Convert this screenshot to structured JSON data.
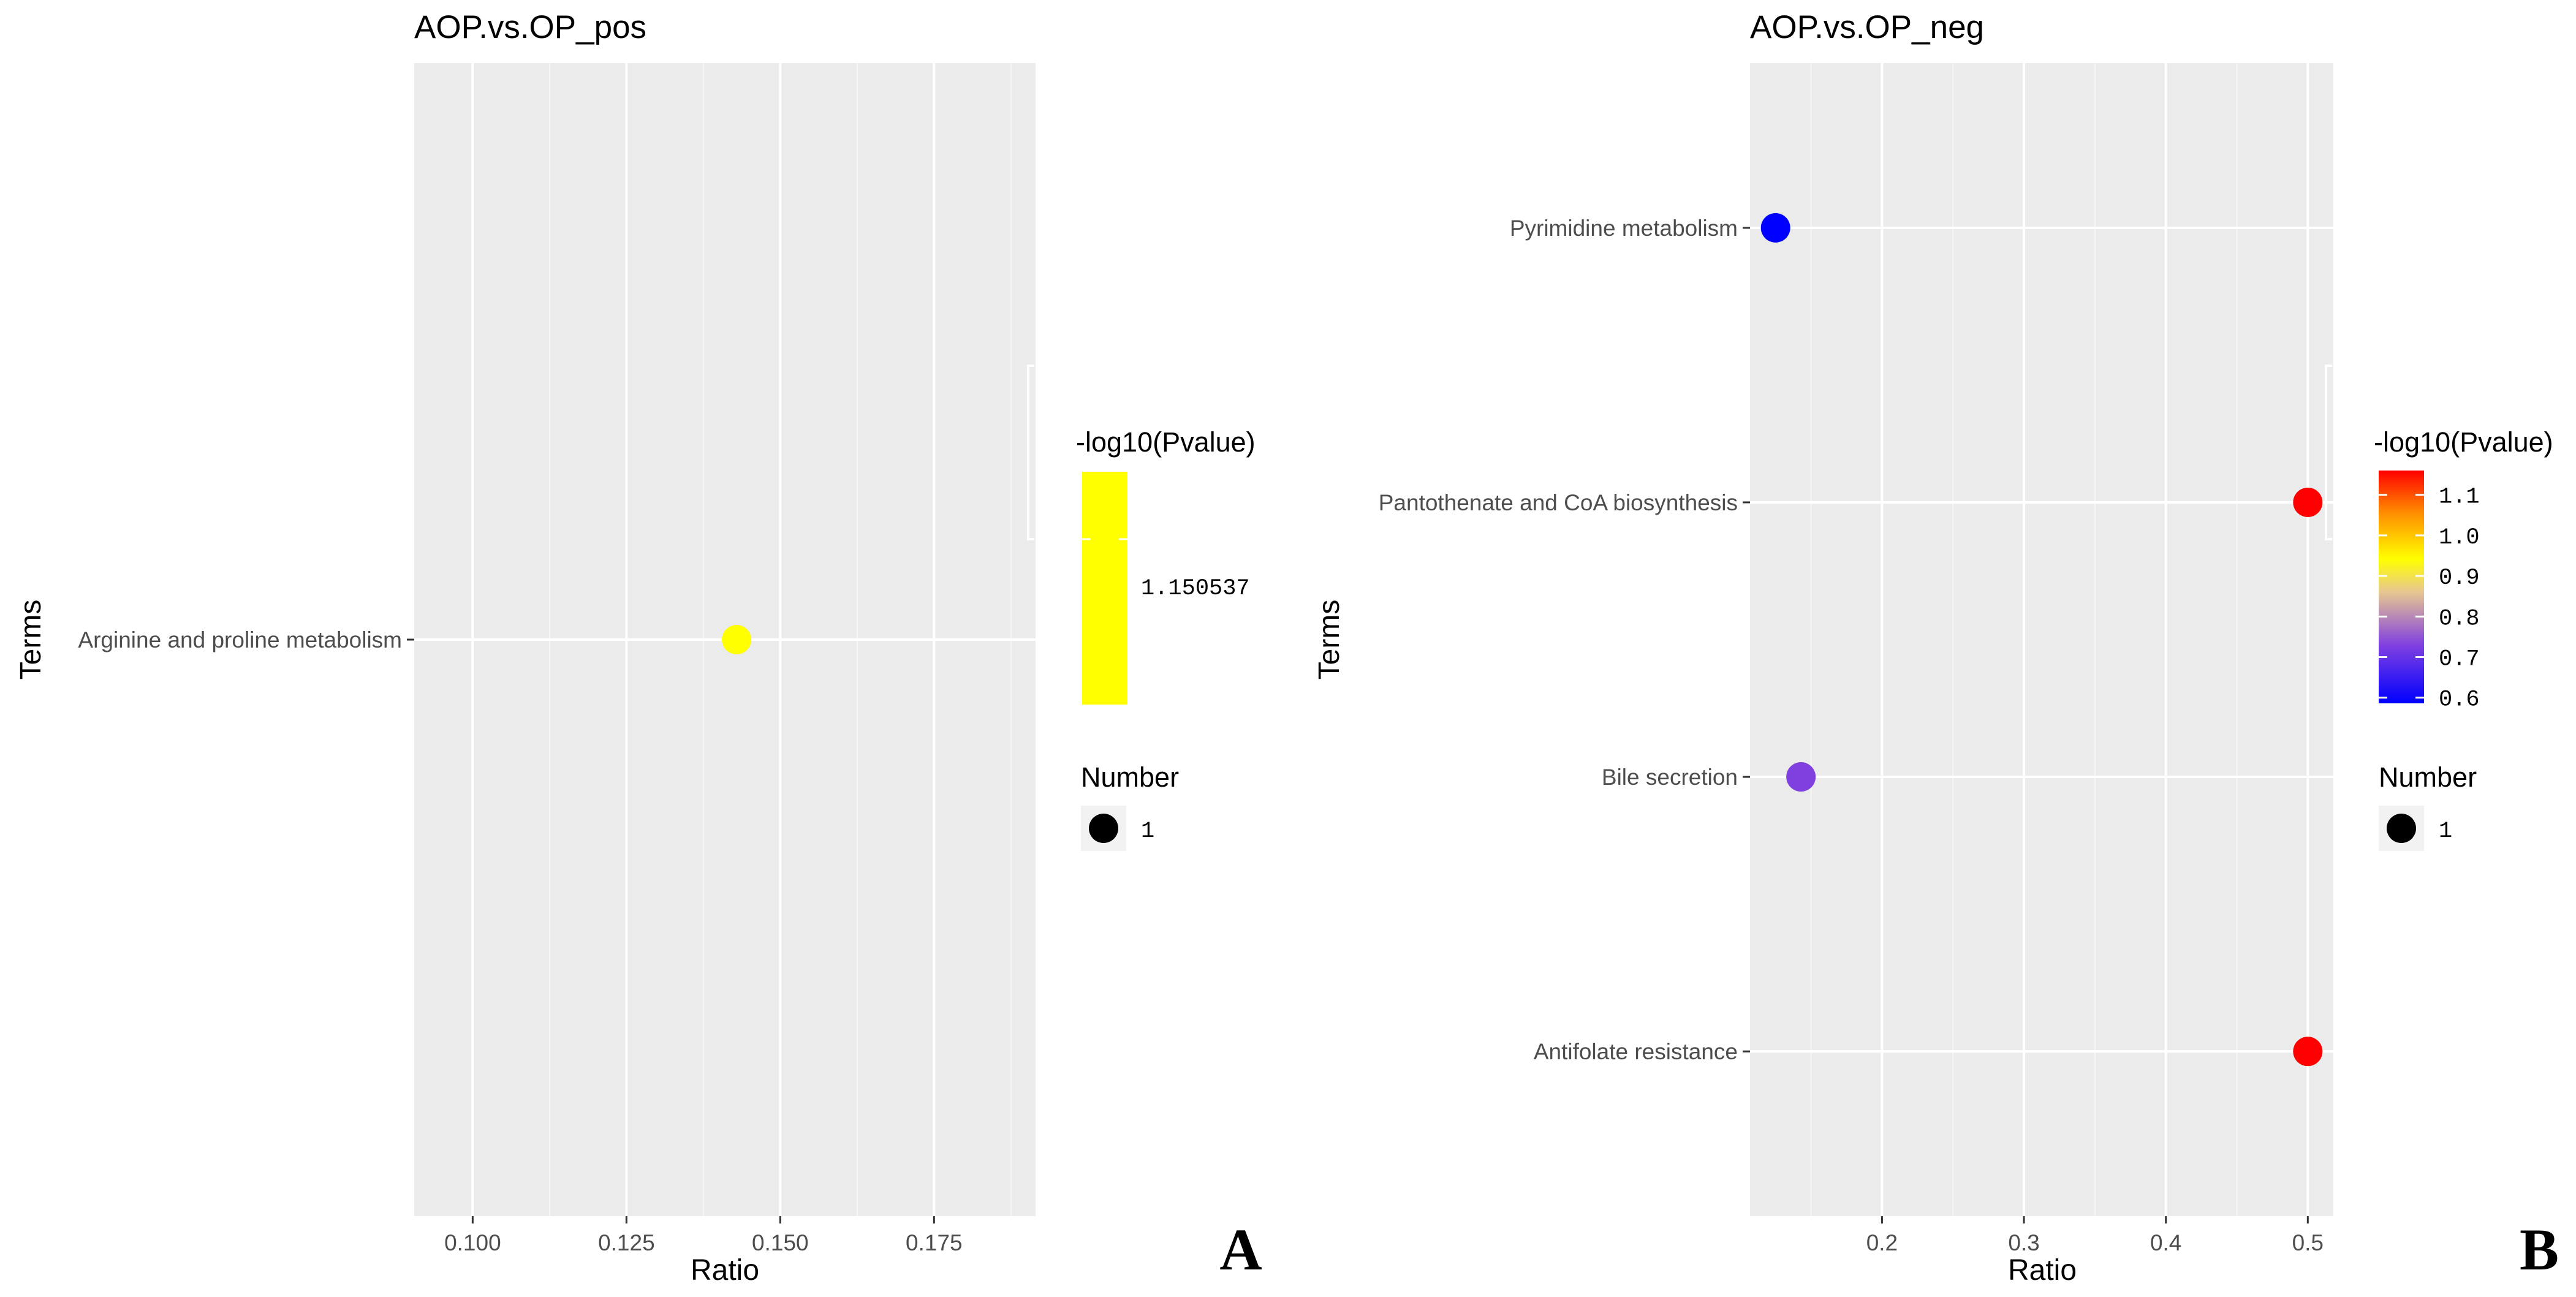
{
  "chart_data": [
    {
      "type": "scatter",
      "title": "AOP.vs.OP_pos",
      "xlabel": "Ratio",
      "ylabel": "Terms",
      "xlim": [
        0.0905,
        0.1915
      ],
      "x_major_ticks": [
        0.1,
        0.125,
        0.15,
        0.175
      ],
      "x_tick_labels": [
        "0.100",
        "0.125",
        "0.150",
        "0.175"
      ],
      "x_minor_ticks": [
        0.1125,
        0.1375,
        0.1625,
        0.1875
      ],
      "grid": true,
      "categories": [
        "Arginine and proline metabolism"
      ],
      "points": [
        {
          "term": "Arginine and proline metabolism",
          "ratio": 0.1429,
          "neg_log10_p": 1.150537,
          "number": 1,
          "color": "#ffff00"
        }
      ],
      "color_legend": {
        "title": "-log10(Pvalue)",
        "tick_labels": [
          "1.150537"
        ],
        "colors": [
          "#ffff00"
        ]
      },
      "size_legend": {
        "title": "Number",
        "labels": [
          "1"
        ]
      },
      "panel_label": "A"
    },
    {
      "type": "scatter",
      "title": "AOP.vs.OP_neg",
      "xlabel": "Ratio",
      "ylabel": "Terms",
      "xlim": [
        0.107,
        0.518
      ],
      "x_major_ticks": [
        0.2,
        0.3,
        0.4,
        0.5
      ],
      "x_tick_labels": [
        "0.2",
        "0.3",
        "0.4",
        "0.5"
      ],
      "x_minor_ticks": [
        0.15,
        0.25,
        0.35,
        0.45
      ],
      "grid": true,
      "categories": [
        "Pyrimidine metabolism",
        "Pantothenate and CoA biosynthesis",
        "Bile secretion",
        "Antifolate resistance"
      ],
      "points": [
        {
          "term": "Pyrimidine metabolism",
          "ratio": 0.125,
          "neg_log10_p": 0.6,
          "number": 1,
          "color": "#0000ff"
        },
        {
          "term": "Pantothenate and CoA biosynthesis",
          "ratio": 0.5,
          "neg_log10_p": 1.15,
          "number": 1,
          "color": "#ff0000"
        },
        {
          "term": "Bile secretion",
          "ratio": 0.1429,
          "neg_log10_p": 0.72,
          "number": 1,
          "color": "#8040e0"
        },
        {
          "term": "Antifolate resistance",
          "ratio": 0.5,
          "neg_log10_p": 1.15,
          "number": 1,
          "color": "#ff0000"
        }
      ],
      "color_legend": {
        "title": "-log10(Pvalue)",
        "tick_values": [
          1.1,
          1.0,
          0.9,
          0.8,
          0.7,
          0.6
        ],
        "tick_labels": [
          "1.1",
          "1.0",
          "0.9",
          "0.8",
          "0.7",
          "0.6"
        ],
        "range": [
          0.586,
          1.16
        ],
        "gradient": [
          "#0000ff",
          "#8040e0",
          "#e8c890",
          "#ffff00",
          "#ff8c00",
          "#ff0000"
        ]
      },
      "size_legend": {
        "title": "Number",
        "labels": [
          "1"
        ]
      },
      "panel_label": "B"
    }
  ]
}
